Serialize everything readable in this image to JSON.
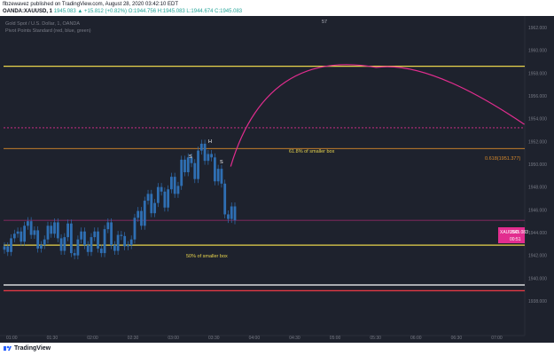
{
  "publish": {
    "line1": "flbzewavez published on TradingView.com, August 28, 2020 03:42:10 EDT",
    "line2_symbol": "OANDA:XAUUSD, 1",
    "line2_last": "1945.083",
    "line2_change": "▲ +15.812 (+0.82%)",
    "line2_ohlc": "O:1944.756 H:1945.083 L:1944.674 C:1945.083"
  },
  "legend": {
    "title": "Gold Spot / U.S. Dollar, 1, OANDA",
    "indicator": "Pivot Points Standard (red, blue, green)"
  },
  "top_marker": "57",
  "annotations": {
    "fib_label": "0.618(1951.377)",
    "box618": "61.8% of smaller box",
    "box50": "50% of smaller box",
    "h": "H",
    "s1": "S",
    "s2": "S"
  },
  "price_tag": {
    "symbol": "XAUUSD",
    "price": "1945.083",
    "countdown": "00:51"
  },
  "colors": {
    "background": "#1e222d",
    "candle": "#2f6fb3",
    "yellow": "#e8d44d",
    "orange": "#d98a2b",
    "magenta": "#e22d8f",
    "red": "#e23a45",
    "white": "#ffffff",
    "axis_text": "#787b86"
  },
  "chart_data": {
    "type": "candlestick",
    "symbol": "XAUUSD",
    "y_ticks": [
      1962.0,
      1960.0,
      1958.0,
      1956.0,
      1954.0,
      1952.0,
      1950.0,
      1948.0,
      1946.0,
      1944.0,
      1942.0,
      1940.0,
      1938.0
    ],
    "x_ticks": [
      "01:00",
      "01:30",
      "02:00",
      "02:30",
      "03:00",
      "03:30",
      "04:00",
      "04:30",
      "05:00",
      "05:30",
      "06:00",
      "06:30",
      "07:00"
    ],
    "horizontal_levels": [
      {
        "price": 1958.6,
        "color": "yellow"
      },
      {
        "price": 1953.2,
        "color": "magenta-dashed"
      },
      {
        "price": 1951.377,
        "color": "orange"
      },
      {
        "price": 1945.083,
        "color": "magenta-thin"
      },
      {
        "price": 1942.9,
        "color": "yellow"
      },
      {
        "price": 1939.4,
        "color": "white"
      },
      {
        "price": 1938.9,
        "color": "red"
      }
    ],
    "projection_arc": {
      "start": [
        "03:42",
        1949.8
      ],
      "peak": [
        "05:30",
        1958.5
      ],
      "end": [
        "07:20",
        1953.5
      ]
    },
    "close_series": [
      1942.8,
      1942.3,
      1943.5,
      1943.9,
      1944.1,
      1943.2,
      1944.6,
      1945.0,
      1943.8,
      1944.2,
      1942.6,
      1942.9,
      1943.4,
      1944.6,
      1943.9,
      1944.9,
      1943.5,
      1942.4,
      1943.6,
      1944.8,
      1942.2,
      1942.0,
      1943.4,
      1944.1,
      1942.9,
      1942.3,
      1943.6,
      1944.1,
      1942.6,
      1942.2,
      1944.3,
      1944.9,
      1942.9,
      1942.4,
      1943.8,
      1943.7,
      1942.8,
      1942.9,
      1943.4,
      1945.3,
      1945.9,
      1944.6,
      1946.8,
      1947.4,
      1945.7,
      1946.6,
      1948.0,
      1947.6,
      1946.2,
      1947.8,
      1948.9,
      1947.4,
      1948.1,
      1950.4,
      1949.3,
      1950.6,
      1950.1,
      1948.7,
      1951.2,
      1951.8,
      1950.3,
      1950.9,
      1950.6,
      1948.5,
      1949.6,
      1948.3,
      1945.6,
      1945.2,
      1946.3,
      1945.08
    ]
  },
  "footer": {
    "brand": "TradingView"
  }
}
